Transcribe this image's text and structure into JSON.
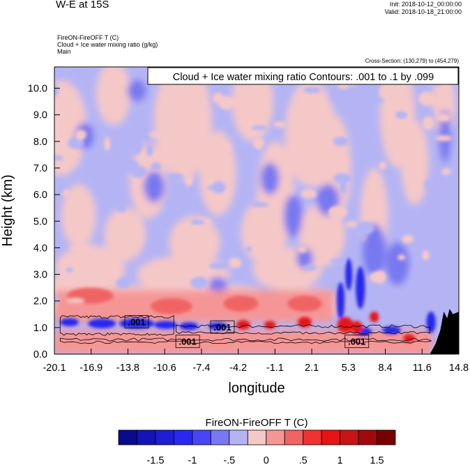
{
  "header": {
    "title": "W-E at 15S",
    "init": "Init: 2018-10-12_00:00:00",
    "valid": "Valid: 2018-10-18_21:00:00",
    "field_line": "FireON-FireOFF T   (C)",
    "contour_line": "Cloud + Ice water mixing ratio   (g/kg)",
    "group_line": "Main",
    "cross_section": "Cross-Section: (130,279) to (454,279)",
    "contour_box": "Cloud + Ice water mixing ratio Contours: .001 to .1 by .099"
  },
  "chart_data": {
    "type": "heatmap",
    "title": "W-E at 15S",
    "xlabel": "longitude",
    "ylabel": "Height (km)",
    "x_ticks": [
      "-20.1",
      "-16.9",
      "-13.8",
      "-10.6",
      "-7.4",
      "-4.2",
      "-1.1",
      "2.1",
      "5.3",
      "8.4",
      "11.6",
      "14.8"
    ],
    "y_ticks": [
      "0.0",
      "1.0",
      "2.0",
      "3.0",
      "4.0",
      "5.0",
      "6.0",
      "7.0",
      "8.0",
      "9.0",
      "10.0"
    ],
    "xlim": [
      -20.1,
      14.8
    ],
    "ylim": [
      0.0,
      10.8
    ],
    "contour_labels": [
      {
        "text": ".001",
        "x": -13.0,
        "y": 1.22
      },
      {
        "text": ".001",
        "x": -5.6,
        "y": 1.02
      },
      {
        "text": ".001",
        "x": -8.6,
        "y": 0.48
      },
      {
        "text": ".001",
        "x": 6.0,
        "y": 0.48
      }
    ],
    "colorbar": {
      "label": "FireON-FireOFF T  (C)",
      "tick_labels": [
        "-1.5",
        "-1",
        "-.5",
        "0",
        ".5",
        "1",
        "1.5"
      ],
      "levels": [
        -1.75,
        -1.5,
        -1.25,
        -1.0,
        -0.75,
        -0.5,
        -0.25,
        0,
        0.25,
        0.5,
        0.75,
        1.0,
        1.25,
        1.5,
        1.75
      ],
      "colors": [
        "#0a0a8c",
        "#1414b4",
        "#1e1ed2",
        "#2828f0",
        "#4646f5",
        "#7878f0",
        "#b4b4f5",
        "#f5c8c8",
        "#f59696",
        "#f06464",
        "#f03232",
        "#e61414",
        "#c81414",
        "#a00a0a",
        "#780000"
      ]
    }
  }
}
